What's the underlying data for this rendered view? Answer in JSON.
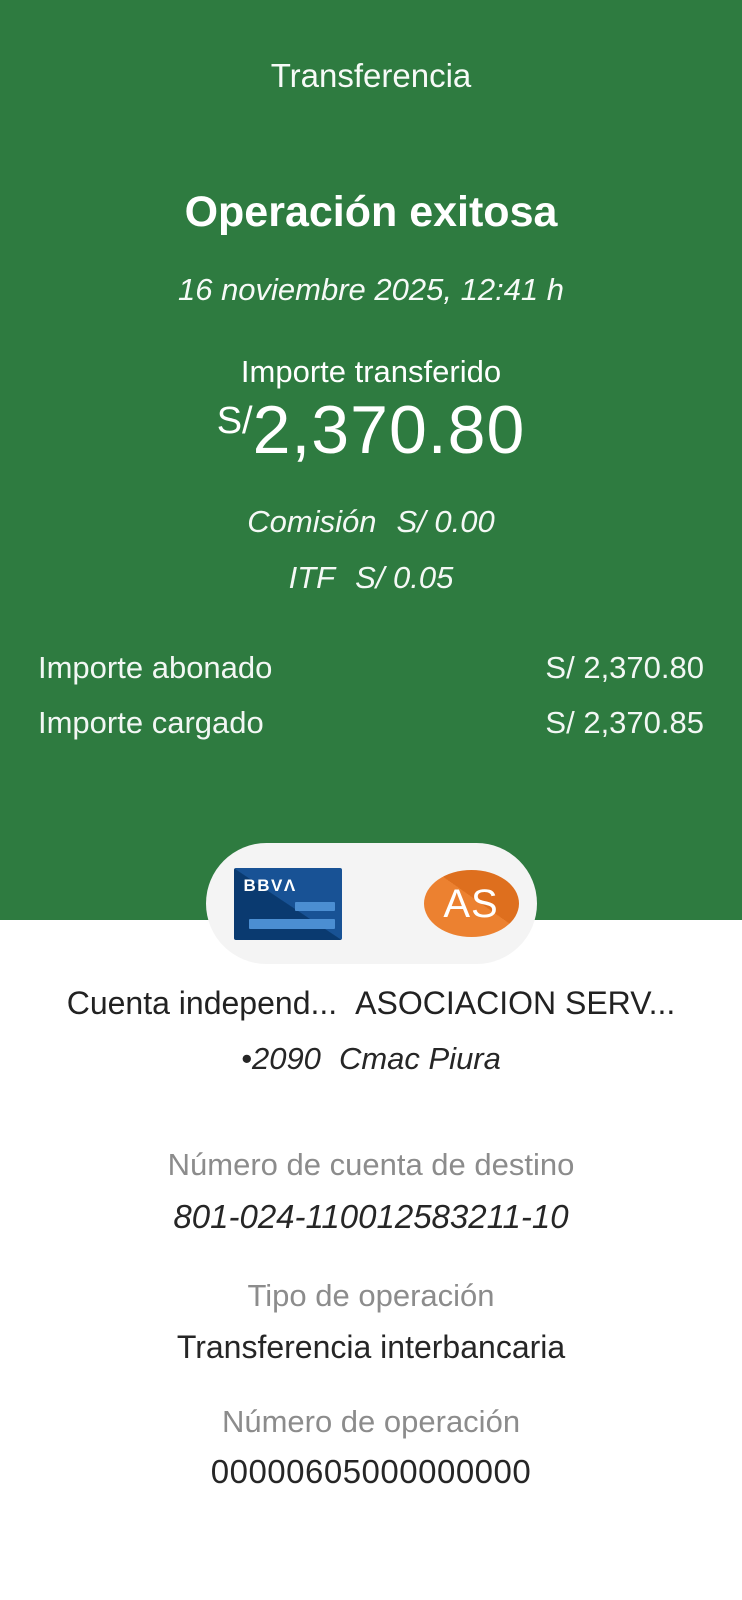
{
  "header": {
    "title": "Transferencia"
  },
  "status": {
    "heading": "Operación exitosa",
    "datetime": "16 noviembre 2025,  12:41 h"
  },
  "amount": {
    "label": "Importe transferido",
    "currency": "S/",
    "value": "2,370.80",
    "commission_label": "Comisión",
    "commission_value": "S/ 0.00",
    "itf_label": "ITF",
    "itf_value": "S/ 0.05"
  },
  "summary_rows": [
    {
      "label": "Importe abonado",
      "value": "S/ 2,370.80"
    },
    {
      "label": "Importe cargado",
      "value": "S/ 2,370.85"
    }
  ],
  "parties": {
    "origin_bank_logo": "BBVΛ",
    "destination_initials": "AS",
    "origin_name": "Cuenta independ...",
    "destination_name": "ASOCIACION SERV...",
    "account_suffix": "•2090",
    "destination_bank": "Cmac Piura"
  },
  "details": [
    {
      "label": "Número de cuenta de destino",
      "value": "801-024-110012583211-10"
    },
    {
      "label": "Tipo de operación",
      "value": "Transferencia interbancaria"
    },
    {
      "label": "Número de operación",
      "value": "00000605000000000"
    }
  ],
  "icons": {
    "origin": "bbva-card-icon",
    "destination": "recipient-avatar"
  },
  "colors": {
    "hero_green": "#2e7b40",
    "card_blue_dark": "#0a3a70",
    "card_blue_light": "#185295",
    "card_bar_blue": "#4b8ed2",
    "avatar_orange": "#ec8130",
    "avatar_orange_dark": "#de6f1e",
    "pill_gray": "#f4f4f4",
    "label_gray": "#8c8c8c",
    "text_dark": "#262626"
  }
}
